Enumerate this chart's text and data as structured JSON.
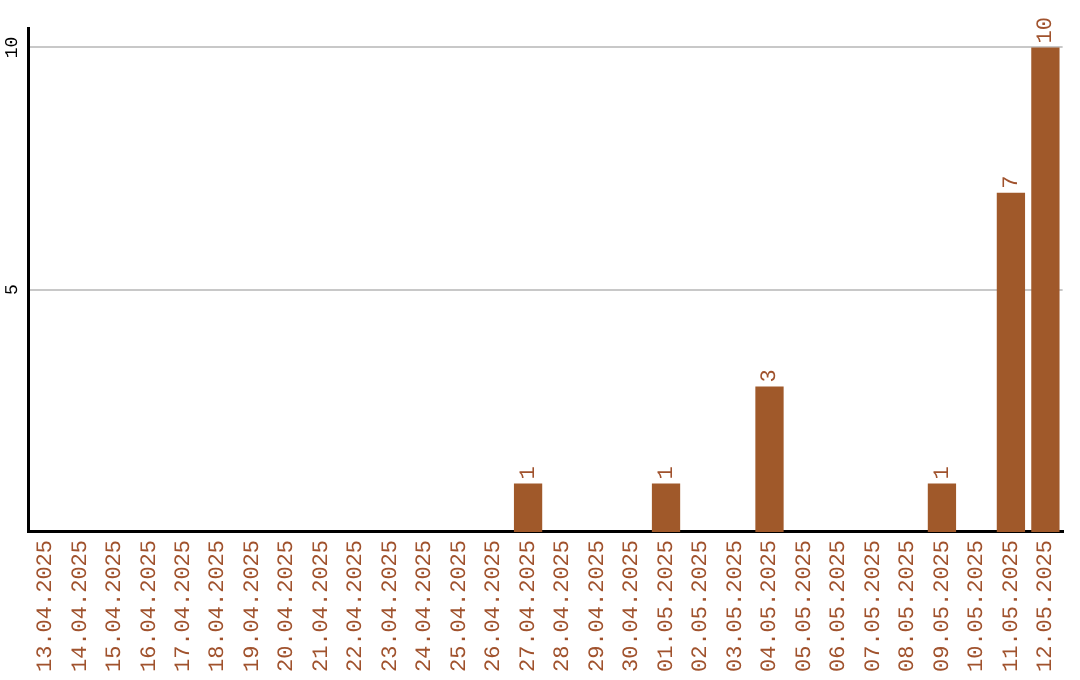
{
  "chart_data": {
    "type": "bar",
    "categories": [
      "13.04.2025",
      "14.04.2025",
      "15.04.2025",
      "16.04.2025",
      "17.04.2025",
      "18.04.2025",
      "19.04.2025",
      "20.04.2025",
      "21.04.2025",
      "22.04.2025",
      "23.04.2025",
      "24.04.2025",
      "25.04.2025",
      "26.04.2025",
      "27.04.2025",
      "28.04.2025",
      "29.04.2025",
      "30.04.2025",
      "01.05.2025",
      "02.05.2025",
      "03.05.2025",
      "04.05.2025",
      "05.05.2025",
      "06.05.2025",
      "07.05.2025",
      "08.05.2025",
      "09.05.2025",
      "10.05.2025",
      "11.05.2025",
      "12.05.2025"
    ],
    "values": [
      0,
      0,
      0,
      0,
      0,
      0,
      0,
      0,
      0,
      0,
      0,
      0,
      0,
      0,
      1,
      0,
      0,
      0,
      1,
      0,
      0,
      3,
      0,
      0,
      0,
      0,
      1,
      0,
      7,
      10
    ],
    "value_labels": [
      null,
      null,
      null,
      null,
      null,
      null,
      null,
      null,
      null,
      null,
      null,
      null,
      null,
      null,
      "1",
      null,
      null,
      null,
      "1",
      null,
      null,
      "3",
      null,
      null,
      null,
      null,
      "1",
      null,
      "7",
      "10"
    ],
    "color": "#a0592a",
    "ylim": [
      0,
      10.4
    ],
    "yticks": [
      5,
      10
    ],
    "grid": "y",
    "legend": false
  }
}
